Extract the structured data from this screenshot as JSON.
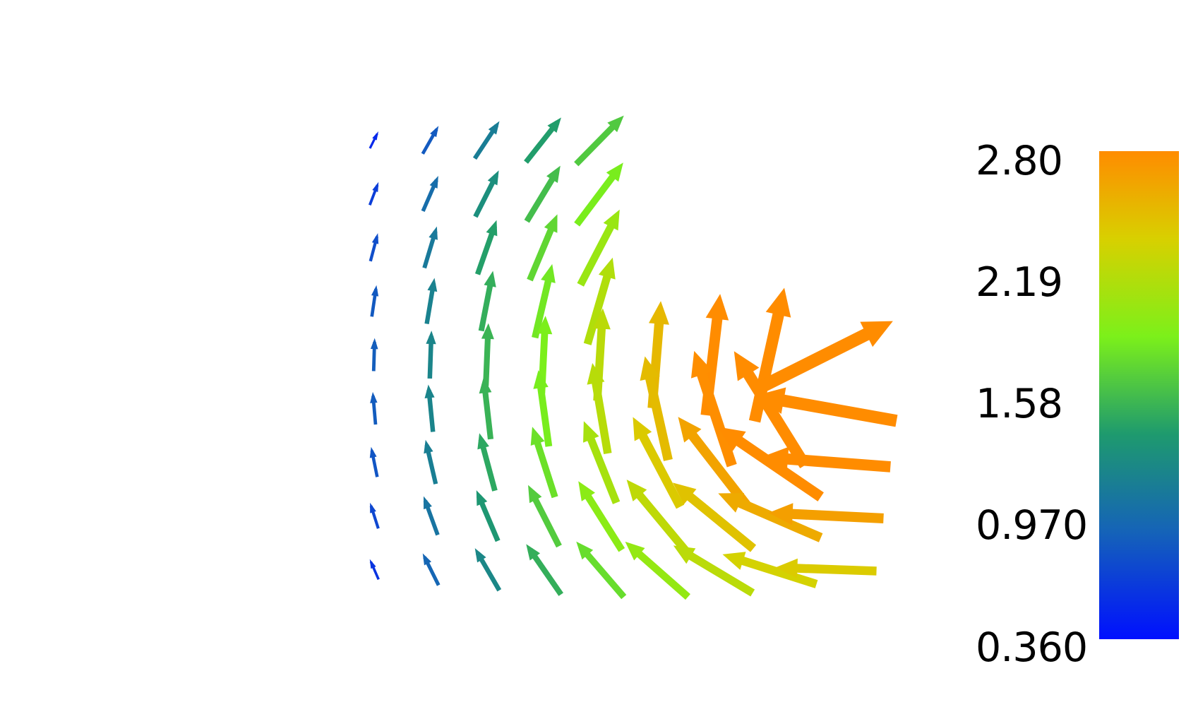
{
  "colorbar": {
    "max_label": "2.80",
    "tick_2": "2.19",
    "tick_3": "1.58",
    "tick_4": "0.970",
    "min_label": "0.360",
    "range": [
      0.36,
      2.8
    ],
    "colors": [
      "#0010ff",
      "#1e6aa0",
      "#22a06a",
      "#7ef01e",
      "#d8d000",
      "#ff8c00"
    ]
  }
}
